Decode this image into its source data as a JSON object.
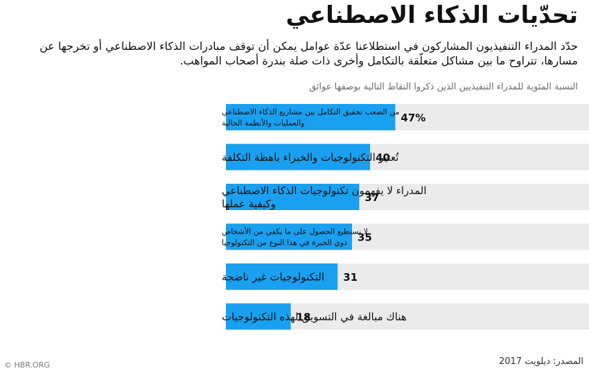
{
  "header": {
    "title": "تحدّيات الذكاء الاصطناعي",
    "subtitle": "حدّد المدراء التنفيذيون المشاركون في استطلاعنا عدّة عوامل يمكن أن توقف مبادرات الذكاء الاصطناعي أو تخرجها عن مسارها، تتراوح ما بين مشاكل متعلّقة بالتكامل وأخرى ذات صلة بندرة أصحاب المواهب."
  },
  "chart_label": "النسبة المئوية للمدراء التنفيذيين الذين ذكروا النقاط التالية بوصفها عوائق",
  "chart_data": {
    "type": "bar",
    "orientation": "horizontal",
    "categories": [
      [
        "من الصعب تحقيق التكامل بين مشاريع الذكاء الاصطناعي",
        "والعمليات والأنظمة الحالية"
      ],
      [
        "تُعتبر التكنولوجيات والخبراء باهظة التكلفة"
      ],
      [
        "المدراء لا يفهمون تكنولوجيات الذكاء الاصطناعي",
        "وكيفية عملها"
      ],
      [
        "لا نستطيع الحصول على ما يكفي من الأشخاص",
        "ذوي الخبرة في هذا النوع من التكنولوجيا"
      ],
      [
        "التكنولوجيات غير ناضجة"
      ],
      [
        "هناك مبالغة في التسويق لهذه التكنولوجيات"
      ]
    ],
    "values": [
      47,
      40,
      37,
      35,
      31,
      18
    ],
    "value_labels": [
      "47%",
      "40",
      "37",
      "35",
      "31",
      "18"
    ],
    "xlim": [
      0,
      100
    ],
    "grid": false,
    "legend": "none",
    "colors": {
      "bar": "#1AA0F0",
      "track": "#EBEBEB",
      "text": "#111111"
    }
  },
  "footer": {
    "credit": "© HBR.ORG",
    "source": "المصدر: ديلويت 2017"
  }
}
